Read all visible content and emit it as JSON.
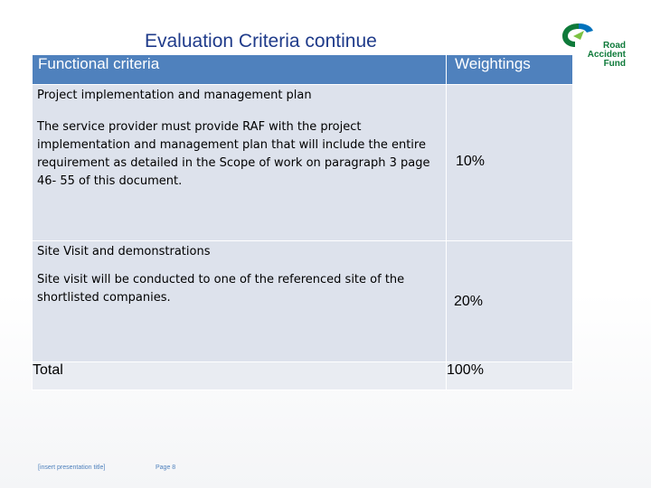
{
  "slide": {
    "title": "Evaluation Criteria continue"
  },
  "logo": {
    "line1": "Road",
    "line2": "Accident",
    "line3": "Fund",
    "icon": "raf-logo-icon",
    "colors": {
      "green": "#0e7a3a",
      "blue": "#0072bc"
    }
  },
  "table": {
    "header": {
      "criteria": "Functional criteria",
      "weightings": "Weightings",
      "color": "#4f81bd"
    },
    "rows": [
      {
        "heading": "Project implementation  and management plan",
        "text": "The service provider must provide RAF with the project implementation and management plan that will include the entire requirement as detailed in the Scope of work on paragraph 3  page 46- 55 of this document.",
        "weight": "10%"
      },
      {
        "heading": "Site Visit and demonstrations",
        "text": "Site visit will be conducted to one of the referenced site of the shortlisted companies.",
        "weight": "20%"
      }
    ],
    "total": {
      "label": "Total",
      "value": "100%"
    }
  },
  "footer": {
    "presentation_title": "[insert presentation title]",
    "page": "Page 8"
  }
}
